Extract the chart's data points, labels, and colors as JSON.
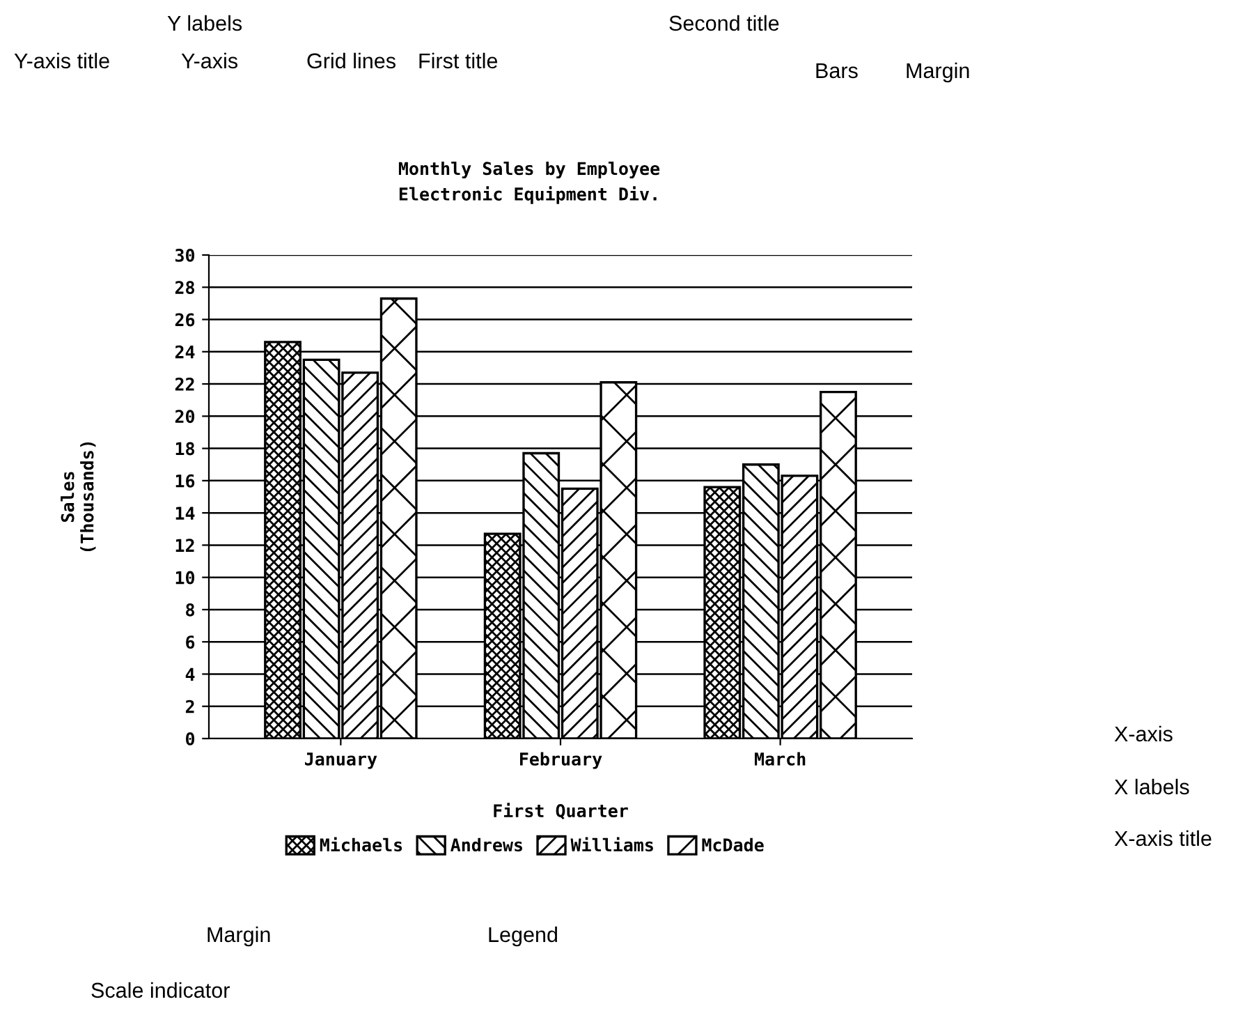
{
  "chart_data": {
    "type": "bar",
    "title": "Monthly Sales by Employee",
    "subtitle": "Electronic Equipment Div.",
    "xlabel": "First Quarter",
    "ylabel": "Sales\n(Thousands)",
    "categories": [
      "January",
      "February",
      "March"
    ],
    "series": [
      {
        "name": "Michaels",
        "color": "#000000",
        "values": [
          24.6,
          12.7,
          15.6
        ]
      },
      {
        "name": "Andrews",
        "color": "#000000",
        "values": [
          23.5,
          17.7,
          17.0
        ]
      },
      {
        "name": "Williams",
        "color": "#000000",
        "values": [
          22.7,
          15.5,
          16.3
        ]
      },
      {
        "name": "McDade",
        "color": "#000000",
        "values": [
          27.3,
          22.1,
          21.5
        ]
      }
    ],
    "ylim": [
      0,
      30
    ],
    "yticks": [
      0,
      2,
      4,
      6,
      8,
      10,
      12,
      14,
      16,
      18,
      20,
      22,
      24,
      26,
      28,
      30
    ],
    "grid": "y",
    "legend": "bottom",
    "annotations": [
      "Y labels",
      "Y-axis title",
      "Y-axis",
      "Grid lines",
      "First title",
      "Second title",
      "Bars",
      "Margin",
      "X-axis",
      "X labels",
      "X-axis title",
      "Margin",
      "Legend",
      "Scale indicator"
    ]
  }
}
